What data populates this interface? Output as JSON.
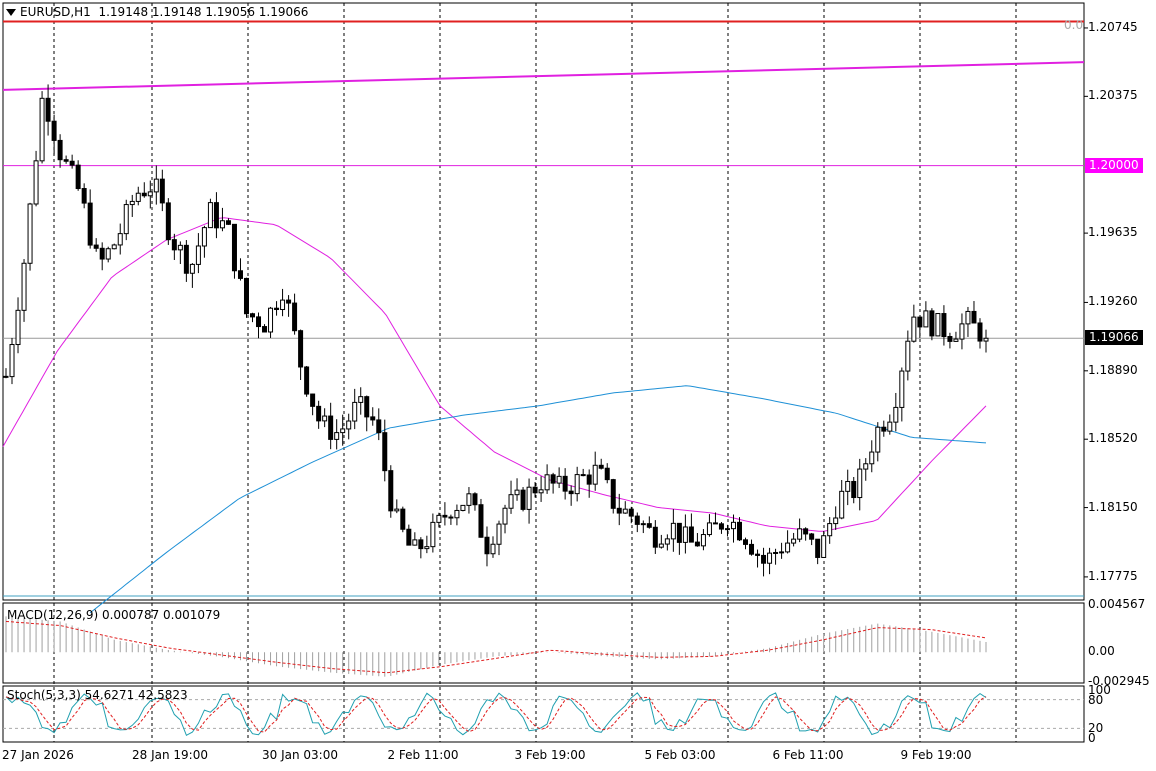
{
  "header": {
    "symbol": "EURUSD,H1",
    "ohlc": "1.19148 1.19148 1.19056 1.19066",
    "corner_value": "0.0"
  },
  "price_axis": {
    "labels": [
      "1.20745",
      "1.20375",
      "1.19635",
      "1.19260",
      "1.18890",
      "1.18520",
      "1.18150",
      "1.17775"
    ],
    "level_label": "1.20000",
    "current_label": "1.19066"
  },
  "time_axis": {
    "labels": [
      "27 Jan 2026",
      "28 Jan 19:00",
      "30 Jan 03:00",
      "2 Feb 11:00",
      "3 Feb 19:00",
      "5 Feb 03:00",
      "6 Feb 11:00",
      "9 Feb 19:00"
    ]
  },
  "macd": {
    "title": "MACD(12,26,9) 0.000787 0.001079",
    "axis_labels": [
      "0.004567",
      "0.00",
      "-0.002945"
    ]
  },
  "stoch": {
    "title": "Stoch(5,3,3) 54.6271 42.5823",
    "axis_labels": [
      "100",
      "80",
      "20",
      "0"
    ]
  },
  "colors": {
    "bull": "#000000",
    "bear": "#000000",
    "ma_fast": "#e020e0",
    "ma_slow": "#1e90d6",
    "hline_red": "#e02020",
    "hline_magenta": "#e020e0",
    "trendline": "#e020e0",
    "level_box": "#ff00ff",
    "macd_signal": "#e02020",
    "macd_hist": "#a0a0a0",
    "stoch_main": "#20a0b0",
    "stoch_signal": "#e02020"
  },
  "chart_data": {
    "type": "candlestick",
    "x": [
      "27 Jan 2026",
      "28 Jan 19:00",
      "30 Jan 03:00",
      "2 Feb 11:00",
      "3 Feb 19:00",
      "5 Feb 03:00",
      "6 Feb 11:00",
      "9 Feb 19:00"
    ],
    "ylim": [
      1.1765,
      1.2088
    ],
    "horizontal_levels": [
      1.2078,
      1.2
    ],
    "trendline": {
      "from": 1.2041,
      "to": 1.2056
    },
    "anchors": [
      1.1886,
      1.195,
      1.204,
      1.2005,
      1.1985,
      1.1945,
      1.196,
      1.1985,
      1.199,
      1.196,
      1.1945,
      1.1975,
      1.1965,
      1.192,
      1.1915,
      1.1935,
      1.189,
      1.186,
      1.1855,
      1.187,
      1.186,
      1.181,
      1.179,
      1.18,
      1.1815,
      1.182,
      1.1795,
      1.1815,
      1.182,
      1.183,
      1.1825,
      1.183,
      1.1835,
      1.1815,
      1.181,
      1.18,
      1.1805,
      1.1795,
      1.18,
      1.181,
      1.18,
      1.1785,
      1.1795,
      1.18,
      1.179,
      1.182,
      1.1825,
      1.1855,
      1.187,
      1.192,
      1.1915,
      1.191,
      1.1915,
      1.1908
    ],
    "current": 1.19066,
    "ma_fast_anchors": [
      1.1848,
      1.19,
      1.194,
      1.196,
      1.1972,
      1.1968,
      1.195,
      1.192,
      1.187,
      1.1845,
      1.183,
      1.1822,
      1.1815,
      1.1812,
      1.1805,
      1.1802,
      1.1808,
      1.184,
      1.187
    ],
    "ma_slow_anchors": [
      1.1758,
      1.179,
      1.182,
      1.184,
      1.1858,
      1.1865,
      1.187,
      1.1877,
      1.1881,
      1.1874,
      1.1866,
      1.1853,
      1.185
    ],
    "macd": {
      "ylim": [
        -0.003,
        0.0048
      ],
      "hist_anchors": [
        0.0035,
        0.003,
        0.0012,
        0.0002,
        -0.0005,
        -0.0014,
        -0.002,
        -0.0024,
        -0.0012,
        -0.0004,
        0.0,
        -0.0004,
        -0.0007,
        -0.0004,
        0.0004,
        0.0018,
        0.0028,
        0.002,
        0.001
      ],
      "signal_anchors": [
        0.003,
        0.0026,
        0.0014,
        0.0004,
        -0.0003,
        -0.001,
        -0.0016,
        -0.002,
        -0.0014,
        -0.0006,
        0.0002,
        -0.0002,
        -0.0005,
        -0.0004,
        0.0002,
        0.0012,
        0.0024,
        0.0022,
        0.0014
      ],
      "current": [
        0.000787,
        0.001079
      ]
    },
    "stoch": {
      "ylim": [
        0,
        100
      ],
      "levels": [
        80,
        20
      ],
      "current": [
        54.6271,
        42.5823
      ]
    }
  }
}
